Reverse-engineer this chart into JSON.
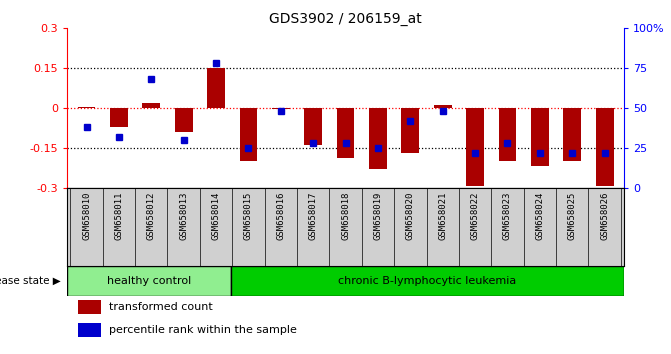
{
  "title": "GDS3902 / 206159_at",
  "samples": [
    "GSM658010",
    "GSM658011",
    "GSM658012",
    "GSM658013",
    "GSM658014",
    "GSM658015",
    "GSM658016",
    "GSM658017",
    "GSM658018",
    "GSM658019",
    "GSM658020",
    "GSM658021",
    "GSM658022",
    "GSM658023",
    "GSM658024",
    "GSM658025",
    "GSM658026"
  ],
  "bar_values": [
    0.005,
    -0.07,
    0.02,
    -0.09,
    0.15,
    -0.2,
    -0.005,
    -0.14,
    -0.19,
    -0.23,
    -0.17,
    0.01,
    -0.295,
    -0.2,
    -0.22,
    -0.2,
    -0.295
  ],
  "dot_values": [
    38,
    32,
    68,
    30,
    78,
    25,
    48,
    28,
    28,
    25,
    42,
    48,
    22,
    28,
    22,
    22,
    22
  ],
  "healthy_count": 5,
  "ylim": [
    -0.3,
    0.3
  ],
  "yticks_left": [
    -0.3,
    -0.15,
    0,
    0.15,
    0.3
  ],
  "yticks_right": [
    0,
    25,
    50,
    75,
    100
  ],
  "bar_color": "#AA0000",
  "dot_color": "#0000CC",
  "healthy_label": "healthy control",
  "disease_label": "chronic B-lymphocytic leukemia",
  "healthy_color": "#90EE90",
  "disease_color": "#00CC00",
  "xtick_bg_color": "#D0D0D0",
  "legend_bar_label": "transformed count",
  "legend_dot_label": "percentile rank within the sample",
  "disease_state_label": "disease state"
}
